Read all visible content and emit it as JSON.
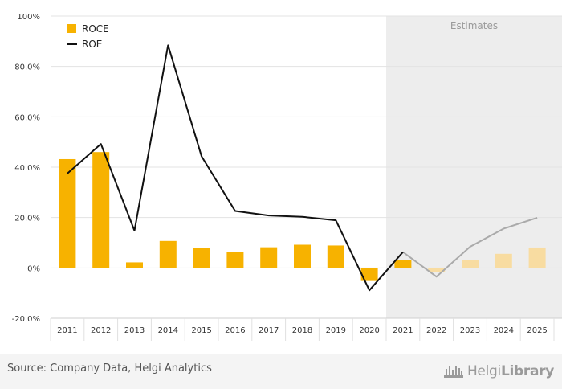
{
  "chart_data": {
    "type": "bar+line",
    "categories": [
      "2011",
      "2012",
      "2013",
      "2014",
      "2015",
      "2016",
      "2017",
      "2018",
      "2019",
      "2020",
      "2021",
      "2022",
      "2023",
      "2024",
      "2025"
    ],
    "estimate_start_index": 11,
    "series": [
      {
        "name": "ROCE",
        "type": "bar",
        "color": "#f7b200",
        "estimate_color": "#f8dca1",
        "values": [
          43.2,
          46.0,
          2.2,
          10.7,
          7.8,
          6.3,
          8.2,
          9.2,
          8.9,
          -5.2,
          3.1,
          -1.7,
          3.2,
          5.6,
          8.1
        ]
      },
      {
        "name": "ROE",
        "type": "line",
        "color": "#111111",
        "estimate_color": "#aaaaaa",
        "values": [
          37.5,
          49.2,
          14.8,
          88.4,
          44.3,
          22.6,
          20.8,
          20.3,
          18.9,
          -8.9,
          6.3,
          -3.5,
          8.4,
          15.6,
          19.9
        ]
      }
    ],
    "yticks": [
      "100%",
      "80.0%",
      "60.0%",
      "40.0%",
      "20.0%",
      "0%",
      "-20.0%"
    ],
    "ylim": [
      -20,
      100
    ],
    "estimates_label": "Estimates",
    "estimate_band_color": "#ededed",
    "grid": true,
    "legend_position": "top-left"
  },
  "footer": {
    "source": "Source: Company Data, Helgi Analytics",
    "logo_regular": "Helgi",
    "logo_bold": "Library"
  }
}
